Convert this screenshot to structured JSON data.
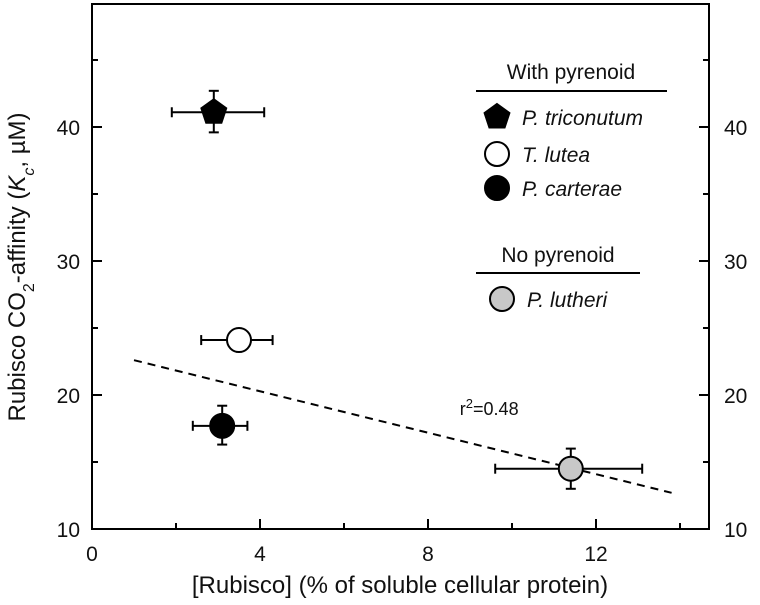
{
  "chart_data": {
    "type": "scatter",
    "xlabel": "[Rubisco]  (% of soluble cellular protein)",
    "ylabel_parts": [
      "Rubisco CO",
      "2",
      "-affinity (",
      "K",
      "c",
      ", µM)"
    ],
    "xlim": [
      0,
      14.5
    ],
    "ylim": [
      10,
      47
    ],
    "x_ticks": [
      "0",
      "4",
      "8",
      "12"
    ],
    "y_ticks": [
      "10",
      "20",
      "30",
      "40"
    ],
    "x_tick_values": [
      0,
      4,
      8,
      12
    ],
    "y_tick_values": [
      10,
      20,
      30,
      40
    ],
    "legend_groups": [
      {
        "title": "With pyrenoid",
        "items": [
          {
            "name": "P. triconutum",
            "marker": "pentagon",
            "fill": "#000000"
          },
          {
            "name": "T. lutea",
            "marker": "circle",
            "fill": "#ffffff"
          },
          {
            "name": "P. carterae",
            "marker": "circle",
            "fill": "#000000"
          }
        ]
      },
      {
        "title": "No pyrenoid",
        "items": [
          {
            "name": "P. lutheri",
            "marker": "circle",
            "fill": "#c8c8c8"
          }
        ]
      }
    ],
    "series": [
      {
        "name": "P. triconutum",
        "marker": "pentagon",
        "fill": "#000000",
        "x": 2.9,
        "y": 41.1,
        "xerr": [
          1.9,
          4.1
        ],
        "yerr": [
          39.6,
          42.7
        ]
      },
      {
        "name": "T. lutea",
        "marker": "circle",
        "fill": "#ffffff",
        "x": 3.5,
        "y": 24.1,
        "xerr": [
          2.6,
          4.3
        ],
        "yerr": [
          23.3,
          24.9
        ]
      },
      {
        "name": "P. carterae",
        "marker": "circle",
        "fill": "#000000",
        "x": 3.1,
        "y": 17.7,
        "xerr": [
          2.4,
          3.7
        ],
        "yerr": [
          16.3,
          19.2
        ]
      },
      {
        "name": "P. lutheri",
        "marker": "circle",
        "fill": "#c8c8c8",
        "x": 11.4,
        "y": 14.5,
        "xerr": [
          9.6,
          13.1
        ],
        "yerr": [
          13.0,
          16.0
        ]
      }
    ],
    "fit_line": {
      "style": "dashed",
      "x": [
        1.0,
        13.8
      ],
      "y": [
        22.6,
        12.7
      ]
    },
    "annotation": {
      "prefix": "r",
      "sup": "2",
      "suffix": "=0.48",
      "x": 9.6,
      "y": 19.1
    }
  }
}
